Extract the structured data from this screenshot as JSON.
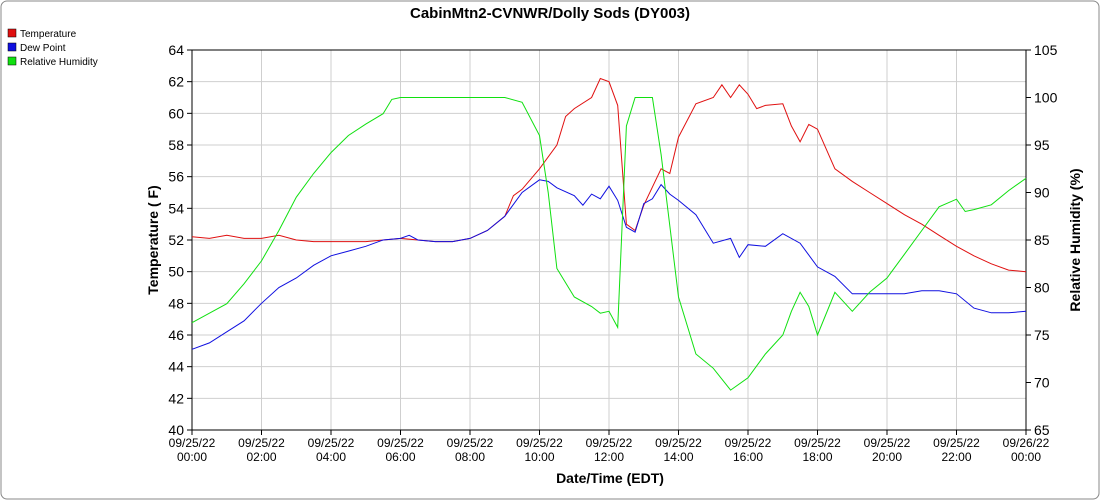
{
  "chart_data": {
    "type": "line",
    "title": "CabinMtn2-CVNWR/Dolly Sods (DY003)",
    "xlabel": "Date/Time (EDT)",
    "ylabel": "Temperature ( F)",
    "y2label": "Relative Humidity (%)",
    "xlim": [
      "09/25/22 00:00",
      "09/26/22 00:00"
    ],
    "xticks": [
      "09/25/22 00:00",
      "09/25/22 02:00",
      "09/25/22 04:00",
      "09/25/22 06:00",
      "09/25/22 08:00",
      "09/25/22 10:00",
      "09/25/22 12:00",
      "09/25/22 14:00",
      "09/25/22 16:00",
      "09/25/22 18:00",
      "09/25/22 20:00",
      "09/25/22 22:00",
      "09/26/22 00:00"
    ],
    "ylim": [
      40,
      64
    ],
    "yticks": [
      40,
      42,
      44,
      46,
      48,
      50,
      52,
      54,
      56,
      58,
      60,
      62,
      64
    ],
    "y2lim": [
      65,
      105
    ],
    "y2ticks": [
      65,
      70,
      75,
      80,
      85,
      90,
      95,
      100,
      105
    ],
    "grid": true,
    "legend": "top-left",
    "series": [
      {
        "name": "Temperature",
        "color": "#e01010",
        "x": [
          "09/25/22 00:00",
          "09/25/22 00:30",
          "09/25/22 01:00",
          "09/25/22 01:30",
          "09/25/22 02:00",
          "09/25/22 02:30",
          "09/25/22 03:00",
          "09/25/22 03:30",
          "09/25/22 04:00",
          "09/25/22 04:30",
          "09/25/22 05:00",
          "09/25/22 05:30",
          "09/25/22 06:00",
          "09/25/22 06:30",
          "09/25/22 07:00",
          "09/25/22 07:30",
          "09/25/22 08:00",
          "09/25/22 08:30",
          "09/25/22 09:00",
          "09/25/22 09:15",
          "09/25/22 09:30",
          "09/25/22 10:00",
          "09/25/22 10:30",
          "09/25/22 10:45",
          "09/25/22 11:00",
          "09/25/22 11:30",
          "09/25/22 11:45",
          "09/25/22 12:00",
          "09/25/22 12:15",
          "09/25/22 12:30",
          "09/25/22 12:45",
          "09/25/22 13:00",
          "09/25/22 13:30",
          "09/25/22 13:45",
          "09/25/22 14:00",
          "09/25/22 14:30",
          "09/25/22 15:00",
          "09/25/22 15:15",
          "09/25/22 15:30",
          "09/25/22 15:45",
          "09/25/22 16:00",
          "09/25/22 16:15",
          "09/25/22 16:30",
          "09/25/22 17:00",
          "09/25/22 17:15",
          "09/25/22 17:30",
          "09/25/22 17:45",
          "09/25/22 18:00",
          "09/25/22 18:30",
          "09/25/22 19:00",
          "09/25/22 19:30",
          "09/25/22 20:00",
          "09/25/22 20:30",
          "09/25/22 21:00",
          "09/25/22 21:30",
          "09/25/22 22:00",
          "09/25/22 22:30",
          "09/25/22 23:00",
          "09/25/22 23:30",
          "09/26/22 00:00"
        ],
        "values": [
          52.2,
          52.1,
          52.3,
          52.1,
          52.1,
          52.3,
          52.0,
          51.9,
          51.9,
          51.9,
          51.9,
          52.0,
          52.1,
          52.0,
          51.9,
          51.9,
          52.1,
          52.6,
          53.5,
          54.8,
          55.2,
          56.5,
          58.0,
          59.8,
          60.3,
          61.0,
          62.2,
          62.0,
          60.5,
          53.0,
          52.6,
          54.2,
          56.5,
          56.2,
          58.5,
          60.6,
          61.0,
          61.8,
          61.0,
          61.8,
          61.2,
          60.3,
          60.5,
          60.6,
          59.2,
          58.2,
          59.3,
          59.0,
          56.5,
          55.7,
          55.0,
          54.3,
          53.6,
          53.0,
          52.3,
          51.6,
          51.0,
          50.5,
          50.1,
          50.0
        ]
      },
      {
        "name": "Dew Point",
        "color": "#1010e0",
        "x": [
          "09/25/22 00:00",
          "09/25/22 00:30",
          "09/25/22 01:00",
          "09/25/22 01:30",
          "09/25/22 02:00",
          "09/25/22 02:30",
          "09/25/22 03:00",
          "09/25/22 03:30",
          "09/25/22 04:00",
          "09/25/22 04:30",
          "09/25/22 05:00",
          "09/25/22 05:30",
          "09/25/22 06:00",
          "09/25/22 06:15",
          "09/25/22 06:30",
          "09/25/22 07:00",
          "09/25/22 07:30",
          "09/25/22 08:00",
          "09/25/22 08:30",
          "09/25/22 09:00",
          "09/25/22 09:30",
          "09/25/22 10:00",
          "09/25/22 10:15",
          "09/25/22 10:30",
          "09/25/22 11:00",
          "09/25/22 11:15",
          "09/25/22 11:30",
          "09/25/22 11:45",
          "09/25/22 12:00",
          "09/25/22 12:15",
          "09/25/22 12:30",
          "09/25/22 12:45",
          "09/25/22 13:00",
          "09/25/22 13:15",
          "09/25/22 13:30",
          "09/25/22 13:45",
          "09/25/22 14:00",
          "09/25/22 14:30",
          "09/25/22 15:00",
          "09/25/22 15:30",
          "09/25/22 15:45",
          "09/25/22 16:00",
          "09/25/22 16:30",
          "09/25/22 17:00",
          "09/25/22 17:30",
          "09/25/22 18:00",
          "09/25/22 18:30",
          "09/25/22 19:00",
          "09/25/22 19:30",
          "09/25/22 20:00",
          "09/25/22 20:30",
          "09/25/22 21:00",
          "09/25/22 21:30",
          "09/25/22 22:00",
          "09/25/22 22:30",
          "09/25/22 23:00",
          "09/25/22 23:30",
          "09/26/22 00:00"
        ],
        "values": [
          45.1,
          45.5,
          46.2,
          46.9,
          48.0,
          49.0,
          49.6,
          50.4,
          51.0,
          51.3,
          51.6,
          52.0,
          52.1,
          52.3,
          52.0,
          51.9,
          51.9,
          52.1,
          52.6,
          53.5,
          55.0,
          55.8,
          55.7,
          55.3,
          54.8,
          54.2,
          54.9,
          54.6,
          55.4,
          54.5,
          52.8,
          52.5,
          54.3,
          54.6,
          55.5,
          54.9,
          54.5,
          53.6,
          51.8,
          52.1,
          50.9,
          51.7,
          51.6,
          52.4,
          51.8,
          50.3,
          49.7,
          48.6,
          48.6,
          48.6,
          48.6,
          48.8,
          48.8,
          48.6,
          47.7,
          47.4,
          47.4,
          47.5
        ]
      },
      {
        "name": "Relative Humidity",
        "color": "#10e010",
        "axis": "y2",
        "x": [
          "09/25/22 00:00",
          "09/25/22 00:30",
          "09/25/22 01:00",
          "09/25/22 01:30",
          "09/25/22 02:00",
          "09/25/22 02:30",
          "09/25/22 03:00",
          "09/25/22 03:30",
          "09/25/22 04:00",
          "09/25/22 04:30",
          "09/25/22 05:00",
          "09/25/22 05:30",
          "09/25/22 05:45",
          "09/25/22 06:00",
          "09/25/22 09:00",
          "09/25/22 09:30",
          "09/25/22 10:00",
          "09/25/22 10:15",
          "09/25/22 10:30",
          "09/25/22 11:00",
          "09/25/22 11:30",
          "09/25/22 11:45",
          "09/25/22 12:00",
          "09/25/22 12:15",
          "09/25/22 12:30",
          "09/25/22 12:45",
          "09/25/22 13:15",
          "09/25/22 13:30",
          "09/25/22 14:00",
          "09/25/22 14:30",
          "09/25/22 15:00",
          "09/25/22 15:30",
          "09/25/22 16:00",
          "09/25/22 16:30",
          "09/25/22 17:00",
          "09/25/22 17:15",
          "09/25/22 17:30",
          "09/25/22 17:45",
          "09/25/22 18:00",
          "09/25/22 18:30",
          "09/25/22 19:00",
          "09/25/22 19:30",
          "09/25/22 20:00",
          "09/25/22 20:30",
          "09/25/22 21:00",
          "09/25/22 21:30",
          "09/25/22 22:00",
          "09/25/22 22:15",
          "09/25/22 22:30",
          "09/25/22 23:00",
          "09/25/22 23:30",
          "09/26/22 00:00"
        ],
        "values": [
          76.3,
          77.3,
          78.3,
          80.4,
          82.8,
          86.0,
          89.5,
          92.0,
          94.2,
          96.0,
          97.2,
          98.3,
          99.8,
          100,
          100,
          99.5,
          96,
          90,
          82,
          79,
          78,
          77.3,
          77.5,
          75.8,
          97,
          100,
          100,
          94,
          79,
          73,
          71.5,
          69.2,
          70.5,
          73,
          75,
          77.5,
          79.5,
          78,
          75,
          79.5,
          77.5,
          79.5,
          81,
          83.5,
          86,
          88.5,
          89.3,
          88,
          88.2,
          88.7,
          90.2,
          91.5
        ]
      }
    ]
  }
}
